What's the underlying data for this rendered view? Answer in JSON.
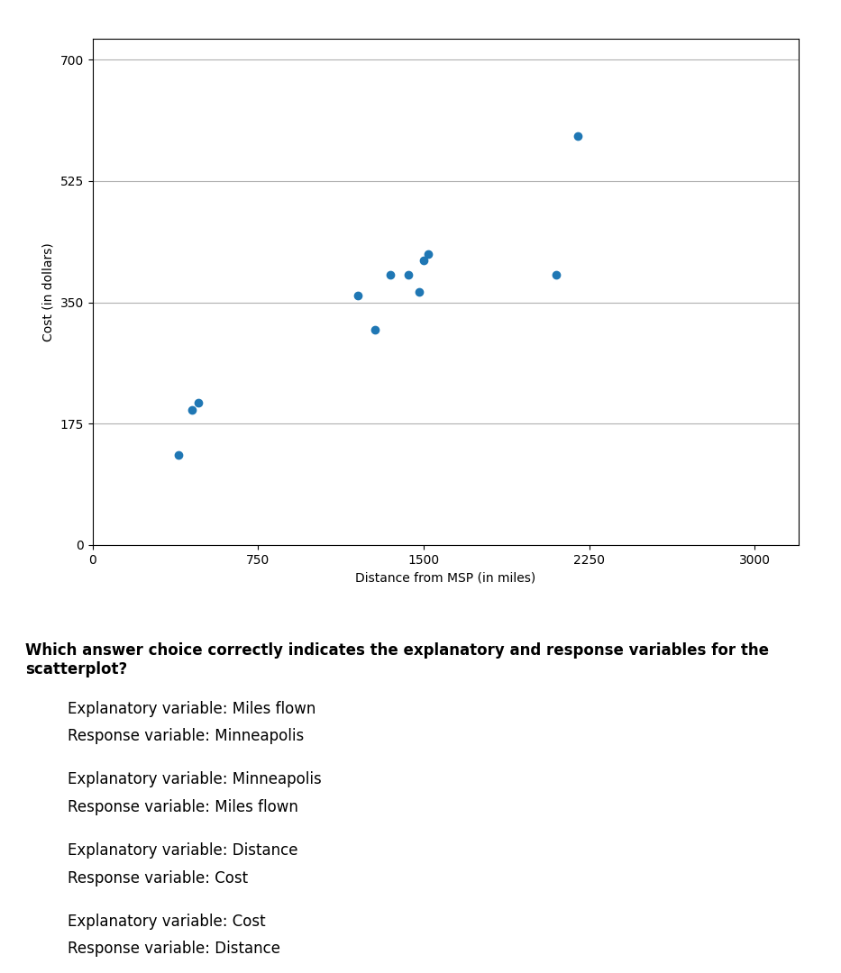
{
  "chart_data": {
    "type": "scatter",
    "x": [
      390,
      450,
      480,
      1200,
      1280,
      1350,
      1430,
      1480,
      1500,
      1520,
      2100,
      2200
    ],
    "values": [
      130,
      195,
      205,
      360,
      310,
      390,
      390,
      365,
      410,
      420,
      390,
      590
    ],
    "x_label": "Distance from MSP (in miles)",
    "y_label": "Cost (in dollars)",
    "xlim": [
      0,
      3200
    ],
    "xticks": [
      0,
      750,
      1500,
      2250,
      3000
    ],
    "ylim": [
      0,
      730
    ],
    "yticks": [
      0,
      175,
      350,
      525,
      700
    ],
    "grid": "y",
    "annotations": [
      "Which answer choice correctly indicates the explanatory and response variables for the scatterplot?",
      "Explanatory variable: Miles flown",
      "Response variable: Minneapolis",
      "Explanatory variable: Minneapolis",
      "Response variable: Miles flown",
      "Explanatory variable: Distance",
      "Response variable: Cost",
      "Explanatory variable: Cost",
      "Response variable: Distance"
    ]
  }
}
